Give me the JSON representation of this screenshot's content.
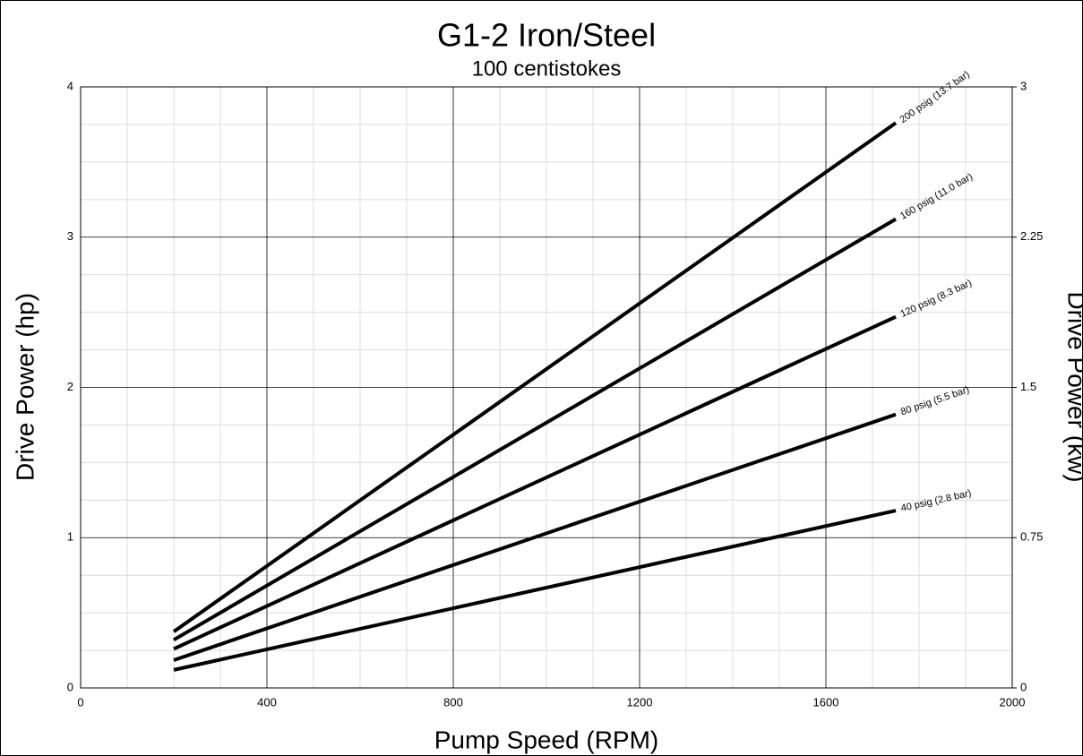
{
  "chart_data": {
    "type": "line",
    "title": "G1-2 Iron/Steel",
    "subtitle": "100 centistokes",
    "x_label": "Pump Speed (RPM)",
    "y_label": "Drive Power (hp)",
    "y2_label": "Drive Power (kw)",
    "x": [
      200,
      1750
    ],
    "series": [
      {
        "name": "200 psig (13.7 bar)",
        "color": "#000000",
        "values": [
          0.375,
          3.76
        ]
      },
      {
        "name": "160 psig (11.0 bar)",
        "color": "#000000",
        "values": [
          0.32,
          3.12
        ]
      },
      {
        "name": "120 psig (8.3 bar)",
        "color": "#000000",
        "values": [
          0.26,
          2.47
        ]
      },
      {
        "name": "80 psig (5.5 bar)",
        "color": "#000000",
        "values": [
          0.185,
          1.82
        ]
      },
      {
        "name": "40 psig (2.8 bar)",
        "color": "#000000",
        "values": [
          0.12,
          1.18
        ]
      }
    ],
    "xlim": [
      0,
      2000
    ],
    "xticks": [
      0,
      400,
      800,
      1200,
      1600,
      2000
    ],
    "xminorticks": [
      100,
      200,
      300,
      500,
      600,
      700,
      900,
      1000,
      1100,
      1300,
      1400,
      1500,
      1700,
      1800,
      1900
    ],
    "ylim": [
      0,
      4
    ],
    "yticks": [
      0,
      1,
      2,
      3,
      4
    ],
    "yminorticks": [
      0.25,
      0.5,
      0.75,
      1.25,
      1.5,
      1.75,
      2.25,
      2.5,
      2.75,
      3.25,
      3.5,
      3.75
    ],
    "y2lim": [
      0,
      3
    ],
    "y2ticks": [
      0,
      0.75,
      1.5,
      2.25,
      3
    ],
    "grid": true
  }
}
